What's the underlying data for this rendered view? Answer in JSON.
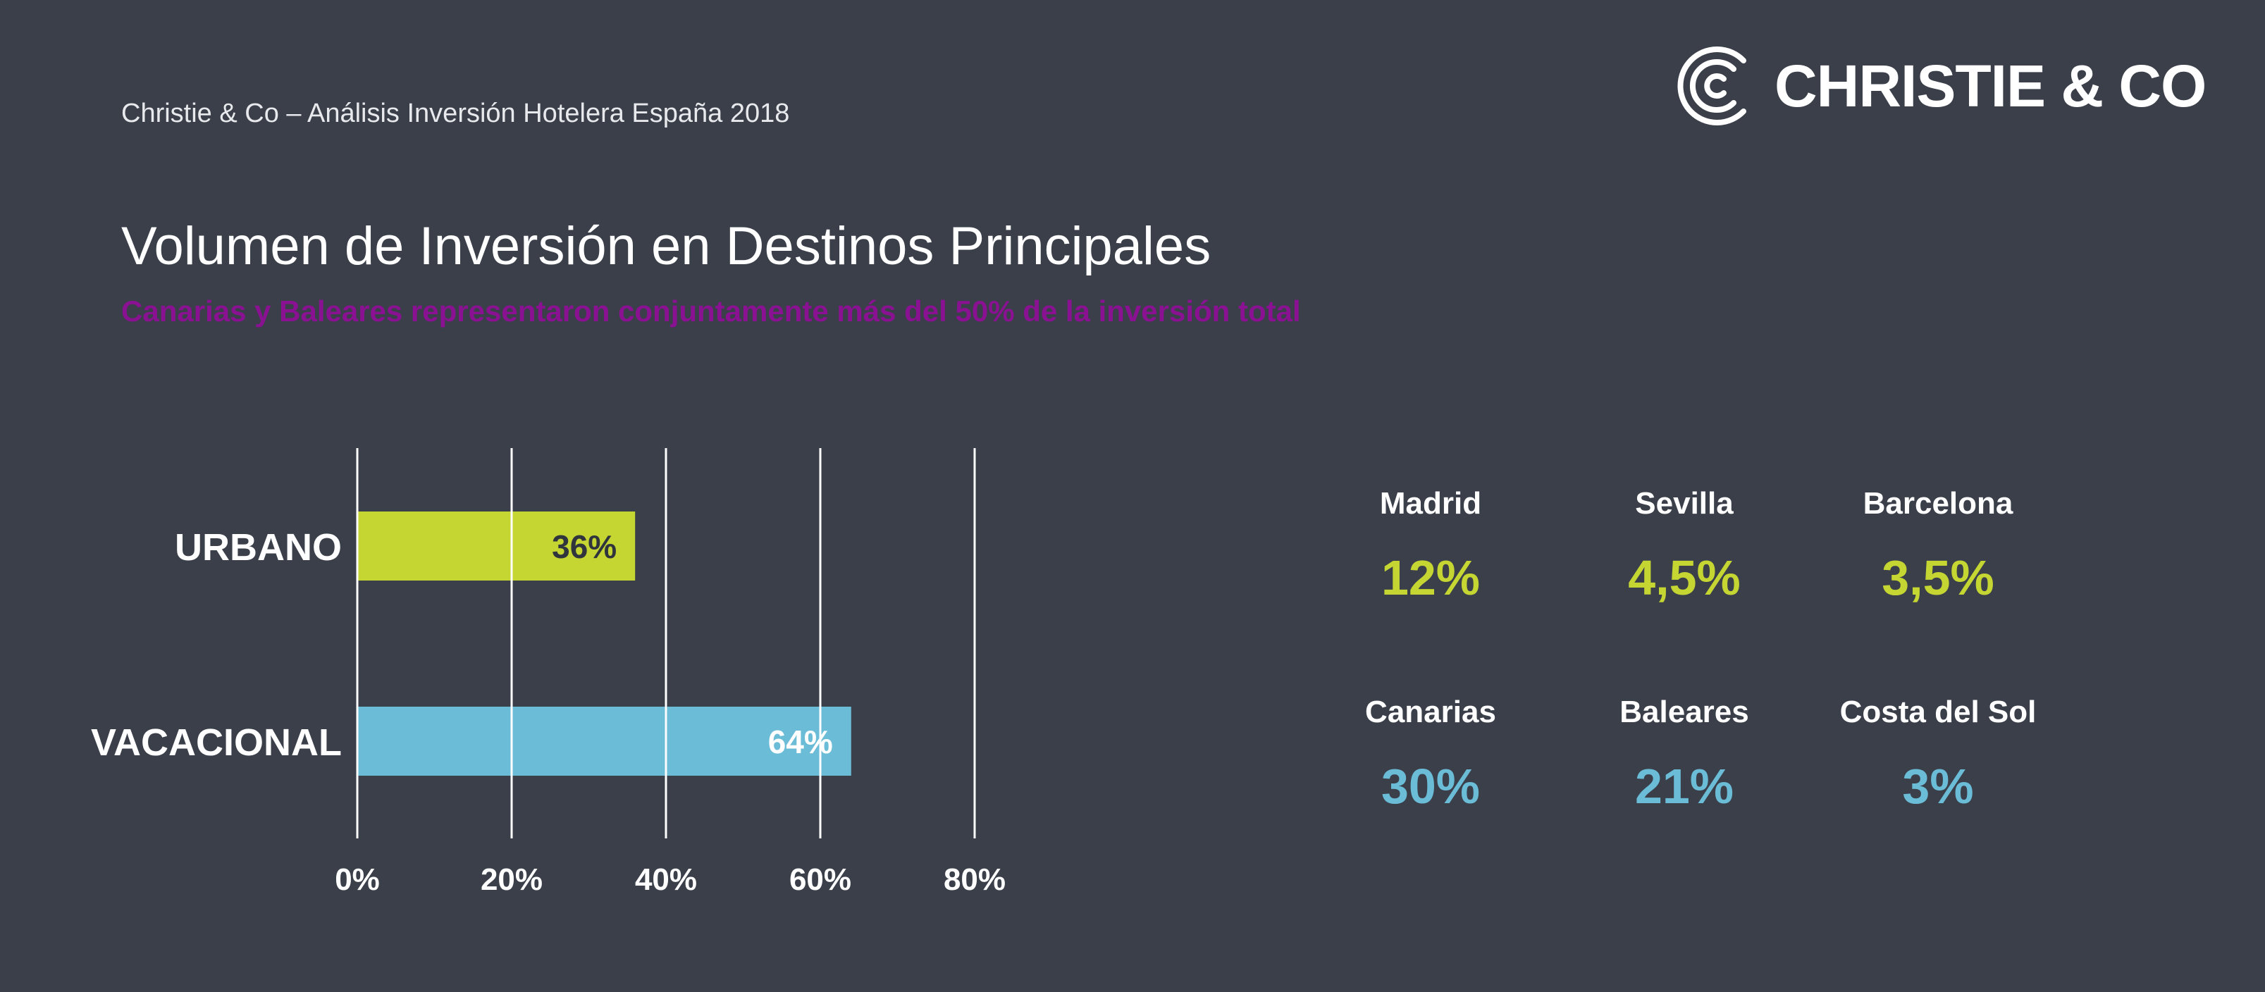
{
  "header": {
    "line": "Christie & Co – Análisis Inversión Hotelera España 2018"
  },
  "logo": {
    "text": "CHRISTIE & CO",
    "icon": "christie-c-logo-icon"
  },
  "page": {
    "title": "Volumen de Inversión en Destinos Principales",
    "subtitle": "Canarias y Baleares representaron conjuntamente más del 50% de la inversión total"
  },
  "colors": {
    "background": "#3a3f4a",
    "urbano": "#c5d633",
    "vacacional": "#6bbcd6",
    "subtitle": "#8a1292",
    "gridline": "#ffffff"
  },
  "chart_data": {
    "type": "bar",
    "orientation": "horizontal",
    "categories": [
      "URBANO",
      "VACACIONAL"
    ],
    "values": [
      36,
      64
    ],
    "data_labels": [
      "36%",
      "64%"
    ],
    "xlim": [
      0,
      80
    ],
    "xticks": [
      0,
      20,
      40,
      60,
      80
    ],
    "xtick_labels": [
      "0%",
      "20%",
      "40%",
      "60%",
      "80%"
    ],
    "grid": true
  },
  "stats": {
    "urbano": [
      {
        "label": "Madrid",
        "value": "12%"
      },
      {
        "label": "Sevilla",
        "value": "4,5%"
      },
      {
        "label": "Barcelona",
        "value": "3,5%"
      }
    ],
    "vacacional": [
      {
        "label": "Canarias",
        "value": "30%"
      },
      {
        "label": "Baleares",
        "value": "21%"
      },
      {
        "label": "Costa del Sol",
        "value": "3%"
      }
    ]
  }
}
